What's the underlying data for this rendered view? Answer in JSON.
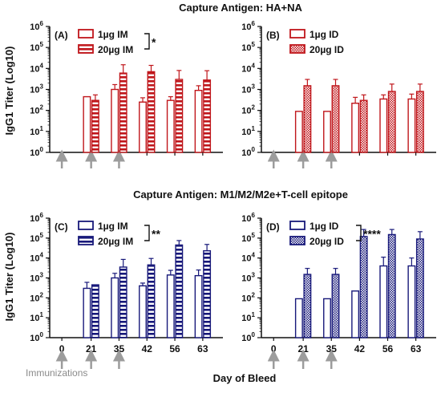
{
  "title_top": "Capture Antigen: HA+NA",
  "title_bottom": "Capture Antigen: M1/M2/M2e+T-cell epitope",
  "ylabel": "IgG1 Titer (Log10)",
  "xlabel": "Day of Bleed",
  "immunizations_label": "Immunizations",
  "colors": {
    "red": "#c0161b",
    "navy": "#18197a",
    "arrow": "#9c9c9c"
  },
  "y_ticks": [
    {
      "base": "10",
      "exp": "0"
    },
    {
      "base": "10",
      "exp": "1"
    },
    {
      "base": "10",
      "exp": "2"
    },
    {
      "base": "10",
      "exp": "3"
    },
    {
      "base": "10",
      "exp": "4"
    },
    {
      "base": "10",
      "exp": "5"
    },
    {
      "base": "10",
      "exp": "6"
    }
  ],
  "x_ticks": [
    "0",
    "21",
    "35",
    "42",
    "56",
    "63"
  ],
  "immunization_days": [
    "0",
    "21",
    "35"
  ],
  "chart_data": [
    {
      "type": "bar",
      "panel": "(A)",
      "color": "#c0161b",
      "scale": "log10",
      "ylim": [
        1,
        1000000
      ],
      "categories": [
        "0",
        "21",
        "35",
        "42",
        "56",
        "63"
      ],
      "series": [
        {
          "name": "1µg IM",
          "pattern": "open",
          "values": [
            null,
            450,
            1000,
            250,
            300,
            900
          ],
          "error": [
            null,
            0,
            700,
            150,
            150,
            600
          ]
        },
        {
          "name": "20µg IM",
          "pattern": "horizontal-stripes",
          "values": [
            null,
            300,
            6000,
            7000,
            3000,
            2800
          ],
          "error": [
            null,
            250,
            9000,
            7000,
            5000,
            5000
          ]
        }
      ],
      "significance": "*"
    },
    {
      "type": "bar",
      "panel": "(B)",
      "color": "#c0161b",
      "scale": "log10",
      "ylim": [
        1,
        1000000
      ],
      "categories": [
        "0",
        "21",
        "35",
        "42",
        "56",
        "63"
      ],
      "series": [
        {
          "name": "1µg ID",
          "pattern": "open",
          "values": [
            null,
            90,
            90,
            220,
            350,
            350
          ],
          "error": [
            null,
            0,
            0,
            200,
            200,
            250
          ]
        },
        {
          "name": "20µg ID",
          "pattern": "checkered",
          "values": [
            null,
            1500,
            1500,
            300,
            800,
            800
          ],
          "error": [
            null,
            1500,
            1500,
            250,
            1000,
            1000
          ]
        }
      ],
      "significance": ""
    },
    {
      "type": "bar",
      "panel": "(C)",
      "color": "#18197a",
      "scale": "log10",
      "ylim": [
        1,
        1000000
      ],
      "categories": [
        "0",
        "21",
        "35",
        "42",
        "56",
        "63"
      ],
      "series": [
        {
          "name": "1µg IM",
          "pattern": "open",
          "values": [
            null,
            300,
            1000,
            400,
            1400,
            1300
          ],
          "error": [
            null,
            300,
            700,
            150,
            1000,
            1200
          ]
        },
        {
          "name": "20µg IM",
          "pattern": "horizontal-stripes",
          "values": [
            null,
            450,
            3500,
            4500,
            45000,
            23000
          ],
          "error": [
            null,
            0,
            5000,
            5000,
            30000,
            25000
          ]
        }
      ],
      "significance": "**"
    },
    {
      "type": "bar",
      "panel": "(D)",
      "color": "#18197a",
      "scale": "log10",
      "ylim": [
        1,
        1000000
      ],
      "categories": [
        "0",
        "21",
        "35",
        "42",
        "56",
        "63"
      ],
      "series": [
        {
          "name": "1µg ID",
          "pattern": "open",
          "values": [
            null,
            90,
            90,
            220,
            4000,
            4000
          ],
          "error": [
            null,
            0,
            0,
            0,
            7000,
            6000
          ]
        },
        {
          "name": "20µg ID",
          "pattern": "checkered",
          "values": [
            null,
            1500,
            1500,
            120000,
            150000,
            90000
          ],
          "error": [
            null,
            1500,
            1500,
            150000,
            120000,
            120000
          ]
        }
      ],
      "significance": "****"
    }
  ]
}
